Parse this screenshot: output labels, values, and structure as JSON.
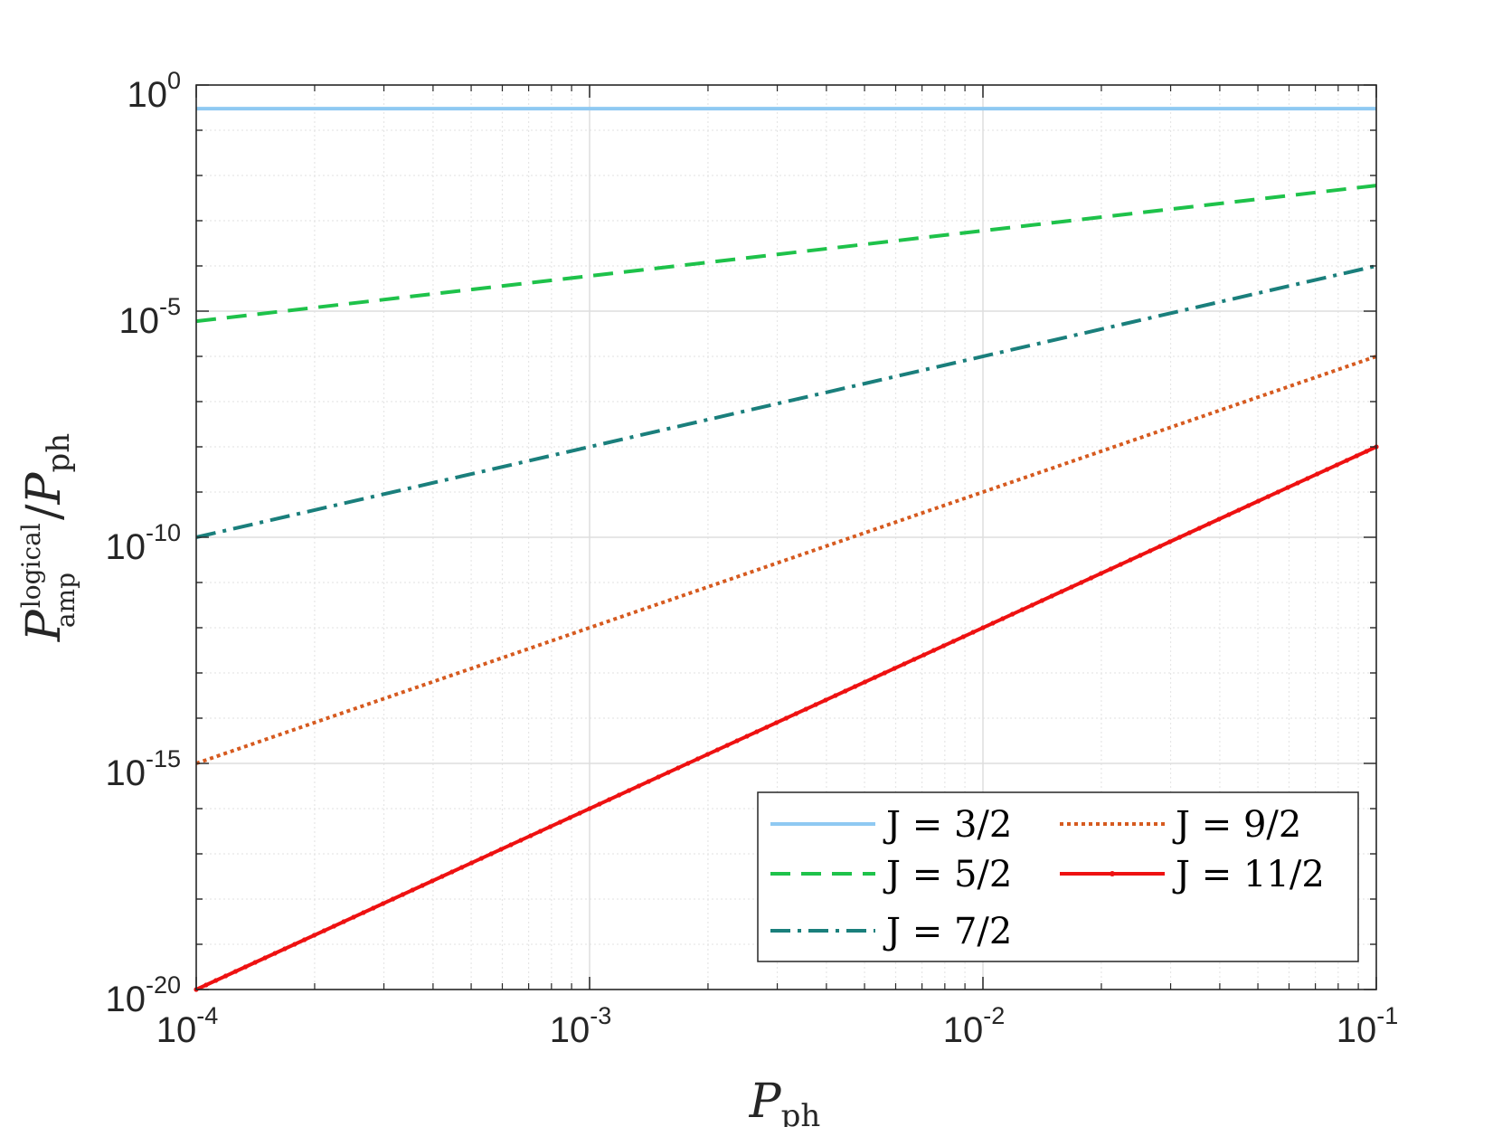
{
  "chart_data": {
    "type": "line",
    "xscale": "log",
    "yscale": "log",
    "xlim": [
      0.0001,
      0.1
    ],
    "ylim": [
      1e-20,
      1
    ],
    "grid": true,
    "minor_grid": true,
    "legend_position": "bottom-right",
    "xlabel": "P",
    "xlabel_sub": "ph",
    "ylabel_main": "P",
    "ylabel_sup": "logical",
    "ylabel_sub": "amp",
    "ylabel_sep": "/",
    "ylabel_main2": "P",
    "ylabel_sub2": "ph",
    "x_ticks": [
      {
        "base": "10",
        "exp": "-4",
        "value": 0.0001
      },
      {
        "base": "10",
        "exp": "-3",
        "value": 0.001
      },
      {
        "base": "10",
        "exp": "-2",
        "value": 0.01
      },
      {
        "base": "10",
        "exp": "-1",
        "value": 0.1
      }
    ],
    "y_ticks": [
      {
        "base": "10",
        "exp": "0",
        "value": 1
      },
      {
        "base": "10",
        "exp": "-5",
        "value": 1e-05
      },
      {
        "base": "10",
        "exp": "-10",
        "value": 1e-10
      },
      {
        "base": "10",
        "exp": "-15",
        "value": 1e-15
      },
      {
        "base": "10",
        "exp": "-20",
        "value": 1e-20
      }
    ],
    "series": [
      {
        "name": "J = 3/2",
        "x": [
          0.0001,
          0.1
        ],
        "y": [
          0.3,
          0.3
        ],
        "color": "#8fc9f2",
        "style": "solid"
      },
      {
        "name": "J = 5/2",
        "x": [
          0.0001,
          0.1
        ],
        "y": [
          6e-06,
          0.006
        ],
        "color": "#1ec24a",
        "style": "dashed"
      },
      {
        "name": "J = 7/2",
        "x": [
          0.0001,
          0.1
        ],
        "y": [
          1e-10,
          0.0001
        ],
        "color": "#1a7f7c",
        "style": "dashdot"
      },
      {
        "name": "J = 9/2",
        "x": [
          0.0001,
          0.1
        ],
        "y": [
          1e-15,
          1e-06
        ],
        "color": "#d65a1f",
        "style": "dotted"
      },
      {
        "name": "J = 11/2",
        "x": [
          0.0001,
          0.1
        ],
        "y": [
          1e-20,
          1e-08
        ],
        "color": "#ee1111",
        "style": "solid-markers"
      }
    ]
  }
}
